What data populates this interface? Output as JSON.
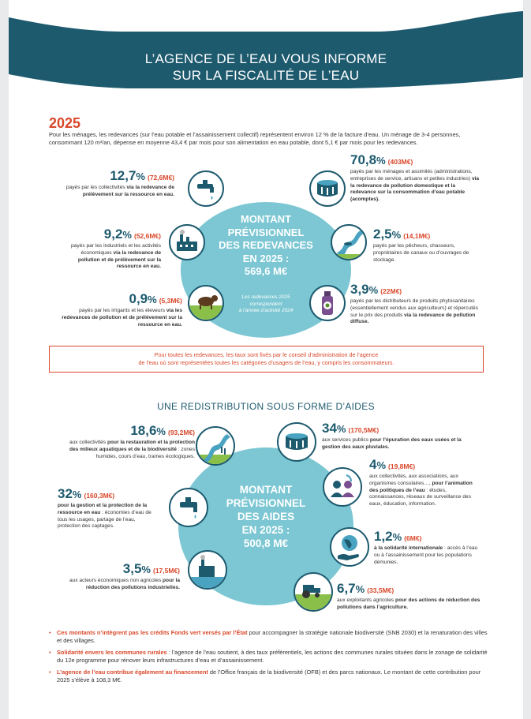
{
  "header": {
    "title_line1": "L’AGENCE DE L’EAU VOUS INFORME",
    "title_line2": "SUR LA FISCALITÉ DE L’EAU"
  },
  "year": "2025",
  "intro": "Pour les ménages, les redevances (sur l’eau potable et l’assainissement collectif) représentent environ 12 % de la facture d’eau. Un ménage de 3-4 personnes, consommant 120 m³/an, dépense en moyenne 43,4 € par mois pour son alimentation en eau potable, dont 5,1 € par mois pour les redevances.",
  "redevances": {
    "center": {
      "l1": "MONTANT",
      "l2": "PRÉVISIONNEL",
      "l3": "DES REDEVANCES",
      "l4": "EN 2025 :",
      "l5": "569,6 M€",
      "note1": "Les redevances 2025",
      "note2": "correspondent",
      "note3": "à l’année d’activité 2024"
    },
    "items": [
      {
        "pct": "12,7",
        "amt": "(72,6M€)",
        "text": "payés par les collectivités ",
        "bold": "via la redevance de prélèvement sur la ressource en eau."
      },
      {
        "pct": "9,2",
        "amt": "(52,6M€)",
        "text": "payés par les industriels et les activités économiques ",
        "bold": "via la redevance de pollution et de prélèvement sur la ressource en eau."
      },
      {
        "pct": "0,9",
        "amt": "(5,3M€)",
        "text": "payés par les irrigants et les éleveurs ",
        "bold": "via les redevances de pollution et de prélèvement sur la ressource en eau."
      },
      {
        "pct": "70,8",
        "amt": "(403M€)",
        "text": "payés par les ménages et assimilés (administrations, entreprises de service, artisans et petites industries) ",
        "bold": "via la redevance de pollution domestique et la redevance sur la consommation d’eau potable (acomptes)."
      },
      {
        "pct": "2,5",
        "amt": "(14,1M€)",
        "text": "payés par les pêcheurs, chasseurs, propriétaires de canaux ou d’ouvrages de stockage.",
        "bold": ""
      },
      {
        "pct": "3,9",
        "amt": "(22M€)",
        "text": "payés par les distributeurs de produits phytosanitaires (essentiellement vendus aux agriculteurs) et répercutés sur le prix des produits ",
        "bold": "via la redevance de pollution diffuse."
      }
    ]
  },
  "notice": {
    "l1": "Pour toutes les redevances, les taux sont fixés par le conseil d’administration de l’agence",
    "l2": "de l’eau où sont représentées toutes les catégories d’usagers de l’eau, y compris les consommateurs."
  },
  "aides_title": "UNE REDISTRIBUTION SOUS FORME D’AIDES",
  "aides": {
    "center": {
      "l1": "MONTANT",
      "l2": "PRÉVISIONNEL",
      "l3": "DES AIDES",
      "l4": "EN 2025 :",
      "l5": "500,8 M€"
    },
    "items": [
      {
        "pct": "18,6",
        "amt": "(93,2M€)",
        "text": "aux collectivités ",
        "bold": "pour la restauration et la protection des milieux aquatiques et de la biodiversité",
        "tail": " : zones humides, cours d’eau, trames écologiques."
      },
      {
        "pct": "32",
        "amt": "(160,3M€)",
        "text": "",
        "bold": "pour la gestion et la protection de la ressource en eau",
        "tail": " : économies d’eau de tous les usages, partage de l’eau, protection des captages."
      },
      {
        "pct": "3,5",
        "amt": "(17,5M€)",
        "text": "aux acteurs économiques non agricoles ",
        "bold": "pour la réduction des pollutions industrielles.",
        "tail": ""
      },
      {
        "pct": "34",
        "amt": "(170,5M€)",
        "text": "aux services publics ",
        "bold": "pour l’épuration des eaux usées et la gestion des eaux pluviales.",
        "tail": ""
      },
      {
        "pct": "4",
        "amt": "(19,8M€)",
        "text": "aux collectivités, aux associations, aux organismes consulaires…, ",
        "bold": "pour l’animation des politiques de l’eau",
        "tail": " : études, connaissances, réseaux de surveillance des eaux, éducation, information."
      },
      {
        "pct": "1,2",
        "amt": "(6M€)",
        "text": "",
        "bold": "à la solidarité internationale",
        "tail": " : accès à l’eau ou à l’assainissement pour les populations démunies."
      },
      {
        "pct": "6,7",
        "amt": "(33,5M€)",
        "text": "aux exploitants agricoles ",
        "bold": "pour des actions de réduction des pollutions dans l’agriculture.",
        "tail": ""
      }
    ]
  },
  "bullets": [
    {
      "hl": "Ces montants n’intègrent pas les crédits Fonds vert versés par l’État",
      "rest": " pour accompagner la stratégie nationale biodiversité (SNB 2030) et la renaturation des villes et des villages."
    },
    {
      "hl": "Solidarité envers les communes rurales",
      "rest": " : l’agence de l’eau soutient, à des taux préférentiels, les actions des communes rurales situées dans le zonage de solidarité du 12e programme pour rénover leurs infrastructures d’eau et d’assainissement."
    },
    {
      "hl": "L’agence de l’eau contribue également au financement",
      "rest": " de l’Office français de la biodiversité (OFB) et des parcs nationaux. Le montant de cette contribution pour 2025 s’élève à 108,3 M€."
    }
  ],
  "percent_sign": "%",
  "colors": {
    "teal": "#1d5a6e",
    "light_blue": "#7cc7d3",
    "accent": "#d9482b"
  },
  "icons": [
    "tap-icon",
    "factory-icon",
    "livestock-icon",
    "tank-icon",
    "fish-river-icon",
    "pesticide-bottle-icon",
    "river-restoration-icon",
    "water-tap-icon",
    "industry-pollution-icon",
    "treatment-tank-icon",
    "people-talk-icon",
    "globe-hand-icon",
    "tractor-icon"
  ]
}
